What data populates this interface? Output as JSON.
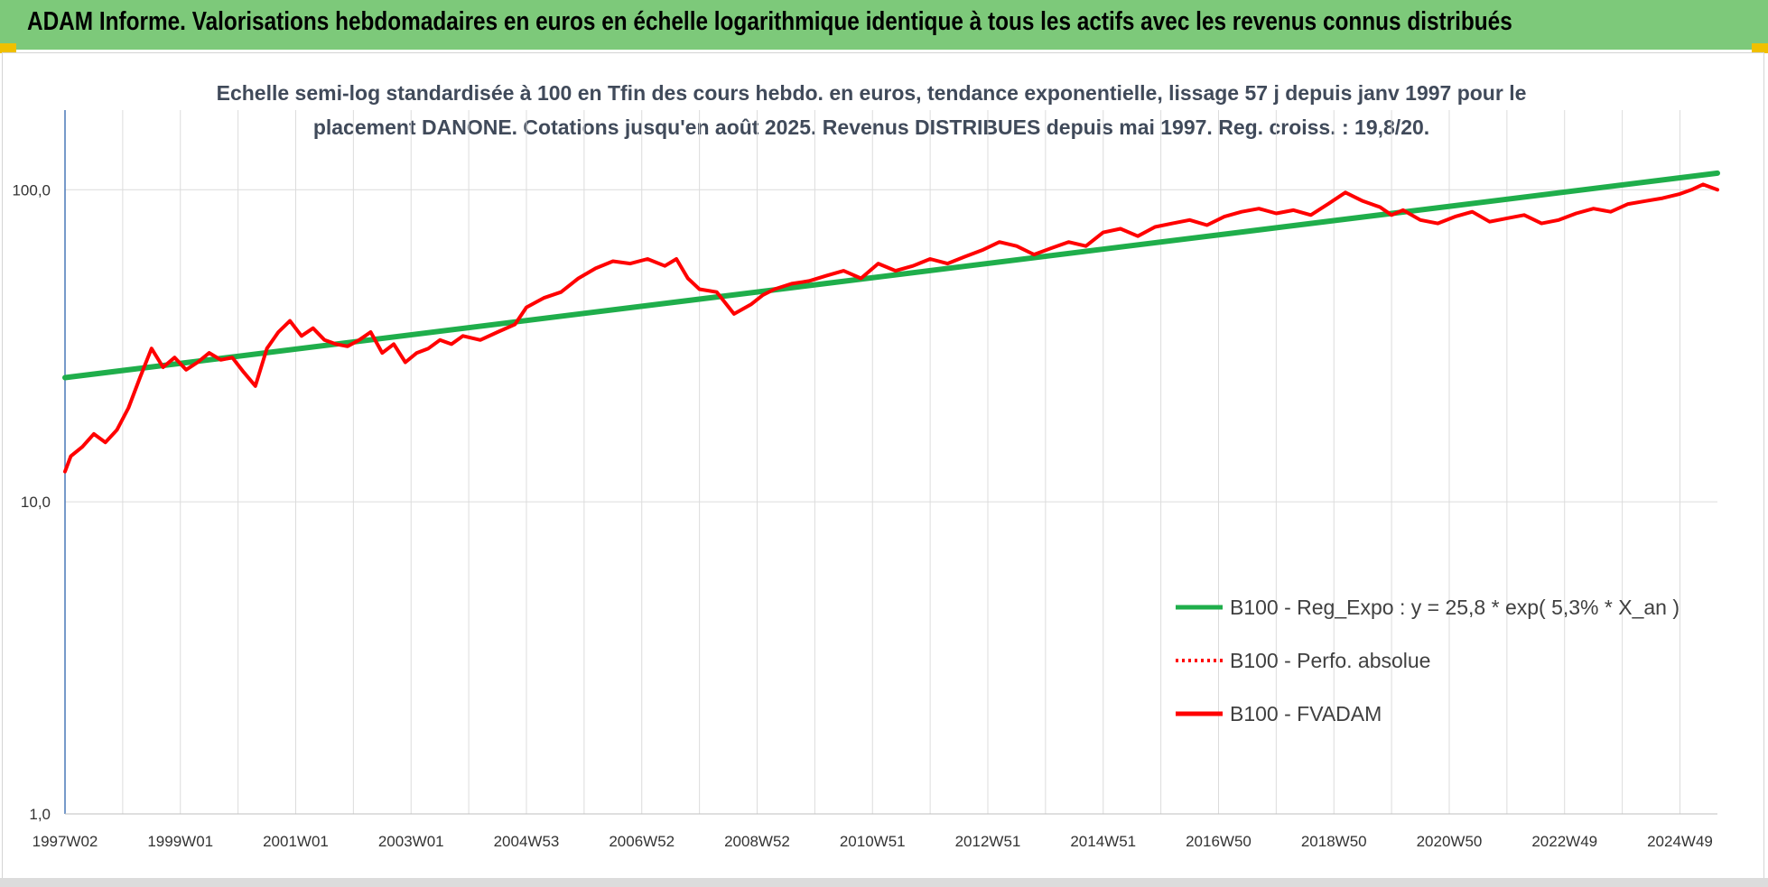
{
  "banner": {
    "title": "ADAM Informe. Valorisations hebdomadaires en euros en échelle logarithmique identique à tous les actifs avec les revenus connus distribués"
  },
  "chart_data": {
    "type": "line",
    "title": "Echelle semi-log standardisée à 100 en Tfin des cours hebdo. en euros, tendance exponentielle, lissage 57 j depuis janv 1997 pour le placement DANONE. Cotations jusqu'en août 2025. Revenus DISTRIBUES depuis mai 1997. Reg. croiss. : 19,8/20.",
    "subtitle_lines": [
      "Echelle semi-log standardisée à 100 en Tfin des cours hebdo. en euros, tendance exponentielle, lissage 57 j depuis janv 1997 pour le",
      "placement DANONE. Cotations jusqu'en août 2025. Revenus DISTRIBUES depuis mai 1997. Reg. croiss. : 19,8/20."
    ],
    "y_scale": "log",
    "ylim": [
      1,
      180
    ],
    "y_ticks": [
      {
        "value": 1,
        "label": "1,0"
      },
      {
        "value": 10,
        "label": "10,0"
      },
      {
        "value": 100,
        "label": "100,0"
      }
    ],
    "x_range": [
      1997.0,
      2025.65
    ],
    "x_ticks": [
      {
        "value": 1997.0,
        "label": "1997W02"
      },
      {
        "value": 1999.0,
        "label": "1999W01"
      },
      {
        "value": 2001.0,
        "label": "2001W01"
      },
      {
        "value": 2003.0,
        "label": "2003W01"
      },
      {
        "value": 2005.0,
        "label": "2004W53"
      },
      {
        "value": 2007.0,
        "label": "2006W52"
      },
      {
        "value": 2009.0,
        "label": "2008W52"
      },
      {
        "value": 2011.0,
        "label": "2010W51"
      },
      {
        "value": 2013.0,
        "label": "2012W51"
      },
      {
        "value": 2015.0,
        "label": "2014W51"
      },
      {
        "value": 2017.0,
        "label": "2016W50"
      },
      {
        "value": 2019.0,
        "label": "2018W50"
      },
      {
        "value": 2021.0,
        "label": "2020W50"
      },
      {
        "value": 2023.0,
        "label": "2022W49"
      },
      {
        "value": 2025.0,
        "label": "2024W49"
      }
    ],
    "grid": "vertical and horizontal",
    "legend_position": "lower-right",
    "series": [
      {
        "name": "B100 - Reg_Expo : y = 25,8 * exp( 5,3% *  X_an )",
        "color": "#1fae4b",
        "style": "solid",
        "x": [
          1997.0,
          2025.65
        ],
        "y": [
          25.0,
          113.0
        ]
      },
      {
        "name": "B100 - Perfo. absolue",
        "color": "#ff0000",
        "style": "dotted",
        "x": [],
        "y": []
      },
      {
        "name": "B100 - FVADAM",
        "color": "#ff0000",
        "style": "solid",
        "x": [
          1997.0,
          1997.1,
          1997.3,
          1997.5,
          1997.7,
          1997.9,
          1998.1,
          1998.3,
          1998.5,
          1998.7,
          1998.9,
          1999.1,
          1999.3,
          1999.5,
          1999.7,
          1999.9,
          2000.1,
          2000.3,
          2000.5,
          2000.7,
          2000.9,
          2001.1,
          2001.3,
          2001.5,
          2001.7,
          2001.9,
          2002.1,
          2002.3,
          2002.5,
          2002.7,
          2002.9,
          2003.1,
          2003.3,
          2003.5,
          2003.7,
          2003.9,
          2004.2,
          2004.5,
          2004.8,
          2005.0,
          2005.3,
          2005.6,
          2005.9,
          2006.2,
          2006.5,
          2006.8,
          2007.1,
          2007.4,
          2007.6,
          2007.8,
          2008.0,
          2008.3,
          2008.6,
          2008.9,
          2009.1,
          2009.3,
          2009.6,
          2009.9,
          2010.2,
          2010.5,
          2010.8,
          2011.1,
          2011.4,
          2011.7,
          2012.0,
          2012.3,
          2012.6,
          2012.9,
          2013.2,
          2013.5,
          2013.8,
          2014.1,
          2014.4,
          2014.7,
          2015.0,
          2015.3,
          2015.6,
          2015.9,
          2016.2,
          2016.5,
          2016.8,
          2017.1,
          2017.4,
          2017.7,
          2018.0,
          2018.3,
          2018.6,
          2018.9,
          2019.2,
          2019.5,
          2019.8,
          2020.0,
          2020.2,
          2020.5,
          2020.8,
          2021.1,
          2021.4,
          2021.7,
          2022.0,
          2022.3,
          2022.6,
          2022.9,
          2023.2,
          2023.5,
          2023.8,
          2024.1,
          2024.4,
          2024.7,
          2025.0,
          2025.2,
          2025.4,
          2025.65
        ],
        "y": [
          12.5,
          14.0,
          15.0,
          16.5,
          15.5,
          17.0,
          20.0,
          25.0,
          31.0,
          27.0,
          29.0,
          26.5,
          28.0,
          30.0,
          28.5,
          29.0,
          26.0,
          23.5,
          31.0,
          35.0,
          38.0,
          34.0,
          36.0,
          33.0,
          32.0,
          31.5,
          33.0,
          35.0,
          30.0,
          32.0,
          28.0,
          30.0,
          31.0,
          33.0,
          32.0,
          34.0,
          33.0,
          35.0,
          37.0,
          42.0,
          45.0,
          47.0,
          52.0,
          56.0,
          59.0,
          58.0,
          60.0,
          57.0,
          60.0,
          52.0,
          48.0,
          47.0,
          40.0,
          43.0,
          46.0,
          48.0,
          50.0,
          51.0,
          53.0,
          55.0,
          52.0,
          58.0,
          55.0,
          57.0,
          60.0,
          58.0,
          61.0,
          64.0,
          68.0,
          66.0,
          62.0,
          65.0,
          68.0,
          66.0,
          73.0,
          75.0,
          71.0,
          76.0,
          78.0,
          80.0,
          77.0,
          82.0,
          85.0,
          87.0,
          84.0,
          86.0,
          83.0,
          90.0,
          98.0,
          92.0,
          88.0,
          83.0,
          86.0,
          80.0,
          78.0,
          82.0,
          85.0,
          79.0,
          81.0,
          83.0,
          78.0,
          80.0,
          84.0,
          87.0,
          85.0,
          90.0,
          92.0,
          94.0,
          97.0,
          100.0,
          104.0,
          100.0
        ]
      }
    ]
  }
}
